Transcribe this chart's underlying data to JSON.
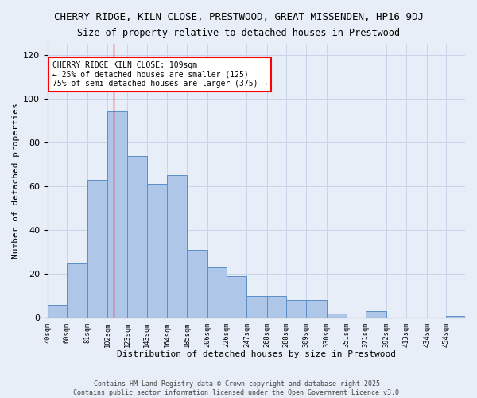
{
  "title_line1": "CHERRY RIDGE, KILN CLOSE, PRESTWOOD, GREAT MISSENDEN, HP16 9DJ",
  "title_line2": "Size of property relative to detached houses in Prestwood",
  "xlabel": "Distribution of detached houses by size in Prestwood",
  "ylabel": "Number of detached properties",
  "bin_labels": [
    "40sqm",
    "60sqm",
    "81sqm",
    "102sqm",
    "123sqm",
    "143sqm",
    "164sqm",
    "185sqm",
    "206sqm",
    "226sqm",
    "247sqm",
    "268sqm",
    "288sqm",
    "309sqm",
    "330sqm",
    "351sqm",
    "371sqm",
    "392sqm",
    "413sqm",
    "434sqm",
    "454sqm"
  ],
  "bin_edges": [
    40,
    60,
    81,
    102,
    123,
    143,
    164,
    185,
    206,
    226,
    247,
    268,
    288,
    309,
    330,
    351,
    371,
    392,
    413,
    434,
    454,
    474
  ],
  "values": [
    6,
    25,
    63,
    94,
    74,
    61,
    65,
    31,
    23,
    19,
    10,
    10,
    8,
    8,
    2,
    0,
    3,
    0,
    0,
    0,
    1
  ],
  "bar_color": "#aec6e8",
  "bar_edge_color": "#5b8fc9",
  "bg_color": "#e8eef7",
  "grid_color": "#c8d4e8",
  "red_line_x": 109,
  "annotation_line1": "CHERRY RIDGE KILN CLOSE: 109sqm",
  "annotation_line2": "← 25% of detached houses are smaller (125)",
  "annotation_line3": "75% of semi-detached houses are larger (375) →",
  "annotation_box_color": "white",
  "annotation_box_edge": "red",
  "footer_line1": "Contains HM Land Registry data © Crown copyright and database right 2025.",
  "footer_line2": "Contains public sector information licensed under the Open Government Licence v3.0.",
  "ylim": [
    0,
    125
  ],
  "yticks": [
    0,
    20,
    40,
    60,
    80,
    100,
    120
  ]
}
